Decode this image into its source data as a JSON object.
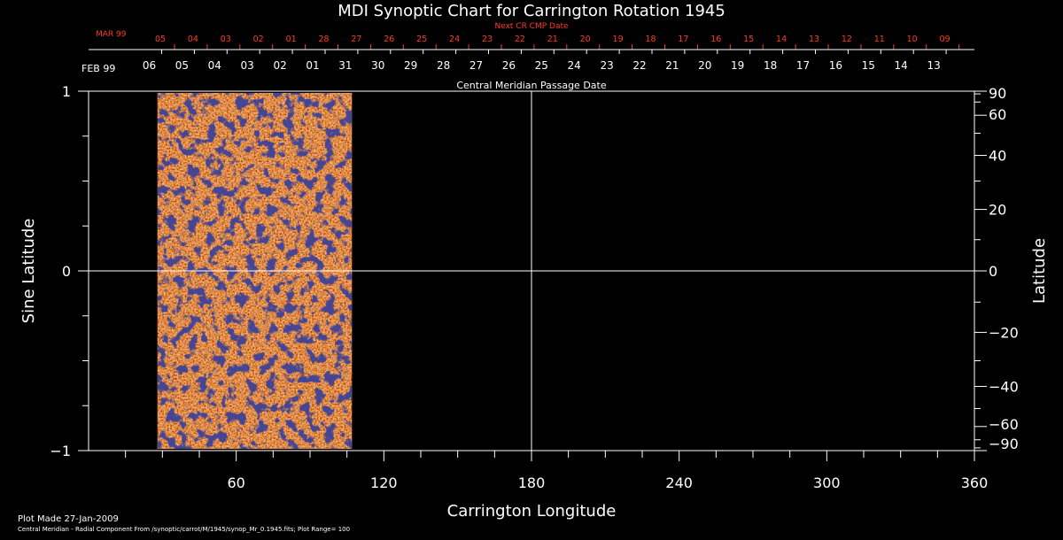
{
  "chart_data": {
    "type": "heatmap",
    "title": "MDI Synoptic Chart for Carrington Rotation 1945",
    "xlabel": "Carrington Longitude",
    "ylabel": "Sine Latitude",
    "ylabel_right": "Latitude",
    "xlim": [
      0,
      360
    ],
    "ylim": [
      -1,
      1
    ],
    "x_ticks": [
      60,
      120,
      180,
      240,
      300,
      360
    ],
    "y_ticks": [
      -1,
      0,
      1
    ],
    "y_tick_labels": [
      "−1",
      "0",
      "1"
    ],
    "right_ticks_deg": [
      90,
      60,
      40,
      20,
      0,
      -20,
      -40,
      -60,
      -90
    ],
    "right_tick_labels": [
      "90",
      "60",
      "40",
      "20",
      "0",
      "−20",
      "−40",
      "−60",
      "−90"
    ],
    "data_extent_longitude": [
      28,
      107
    ],
    "colormap": "blue-red-yellow-white (radial magnetic field)",
    "plot_range": "100",
    "grid": "lines at longitude 180 and sine latitude 0",
    "top_axis": {
      "label": "Central Meridian Passage Date",
      "month_label": "FEB 99",
      "days": [
        "06",
        "05",
        "04",
        "03",
        "02",
        "01",
        "31",
        "30",
        "29",
        "28",
        "27",
        "26",
        "25",
        "24",
        "23",
        "22",
        "21",
        "20",
        "19",
        "18",
        "17",
        "16",
        "15",
        "14",
        "13"
      ],
      "next_label": "Next CR CMP Date",
      "next_month_label": "MAR 99",
      "next_days": [
        "05",
        "04",
        "03",
        "02",
        "01",
        "28",
        "27",
        "26",
        "25",
        "24",
        "23",
        "22",
        "21",
        "20",
        "19",
        "18",
        "17",
        "16",
        "15",
        "14",
        "13",
        "12",
        "11",
        "10",
        "09"
      ]
    }
  },
  "footer": {
    "plot_made": "Plot Made 27-Jan-2009",
    "note": "Central Meridian - Radial Component From /synoptic/carrot/M/1945/synop_Mr_0.1945.fits; Plot Range=  100"
  },
  "colors": {
    "background": "#000000",
    "axes": "#ffffff",
    "secondary_axis": "#ff3b1f",
    "map_base": "#e04010",
    "map_positive": "#ffe6a0",
    "map_negative": "#101048"
  }
}
